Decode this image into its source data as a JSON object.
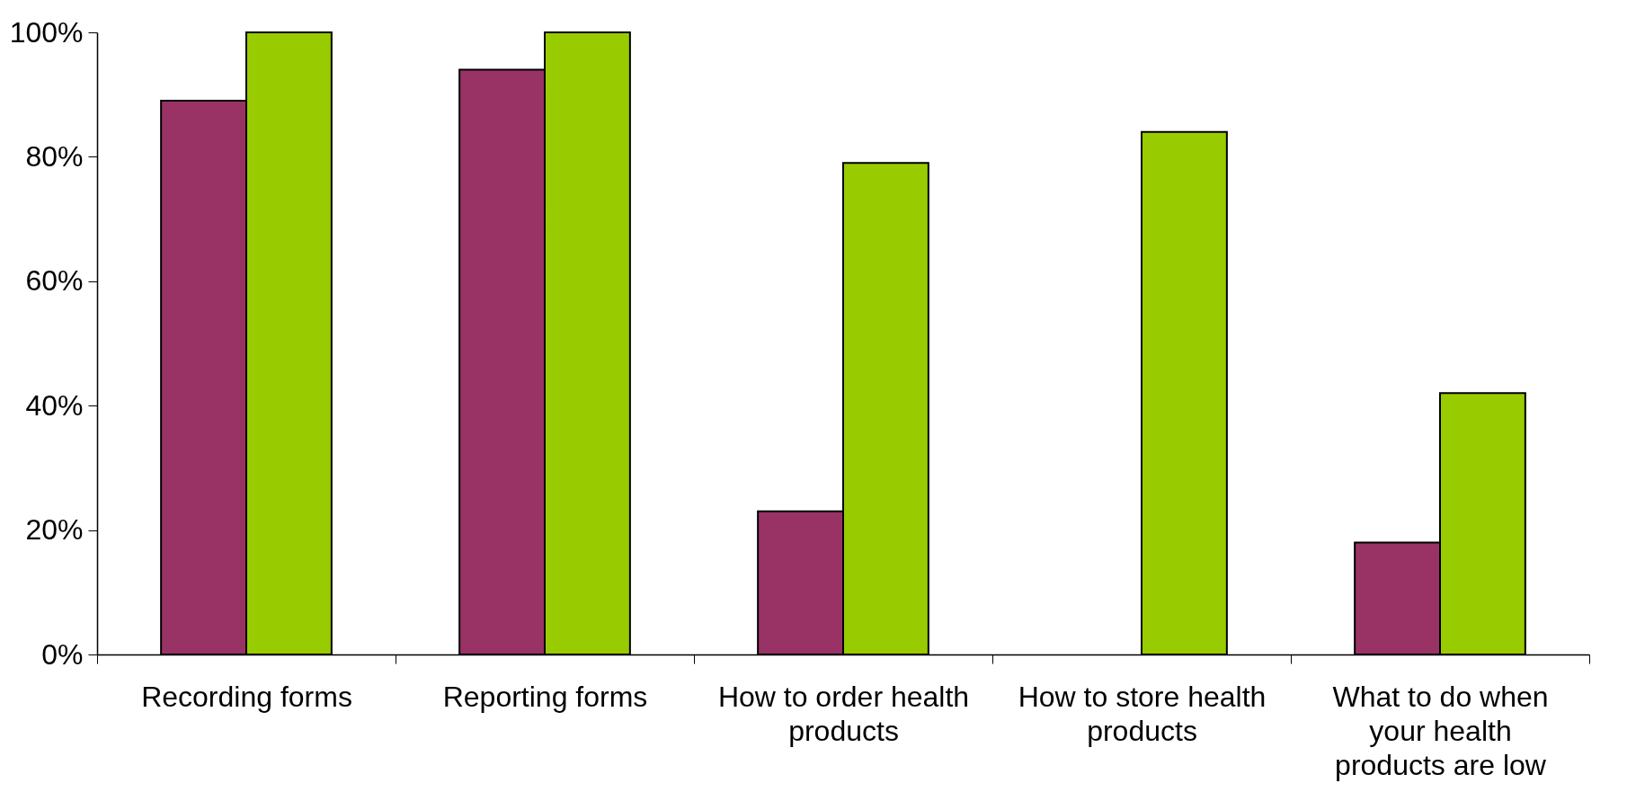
{
  "chart_data": {
    "type": "bar",
    "categories": [
      "Recording forms",
      "Reporting forms",
      "How to order health products",
      "How to store health products",
      "What to do when your health products are low"
    ],
    "series": [
      {
        "color": "#993366",
        "values": [
          89,
          94,
          23,
          null,
          18
        ]
      },
      {
        "color": "#99cc00",
        "values": [
          100,
          100,
          79,
          84,
          42
        ]
      }
    ],
    "ylim": [
      0,
      100
    ],
    "yticks": [
      {
        "value": 0,
        "label": "0%"
      },
      {
        "value": 20,
        "label": "20%"
      },
      {
        "value": 40,
        "label": "40%"
      },
      {
        "value": 60,
        "label": "60%"
      },
      {
        "value": 80,
        "label": "80%"
      },
      {
        "value": 100,
        "label": "100%"
      }
    ],
    "grid": false,
    "legend": false
  }
}
